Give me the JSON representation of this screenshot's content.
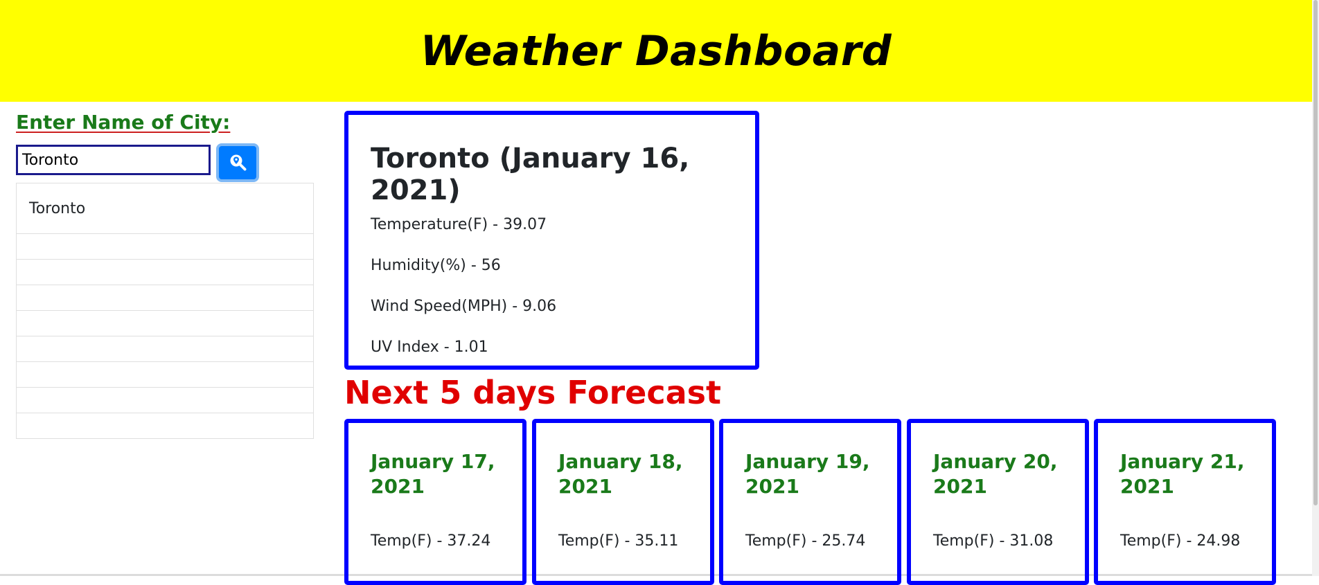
{
  "header": {
    "title": "Weather Dashboard"
  },
  "search": {
    "label": "Enter Name of City:",
    "value": "Toronto",
    "button_icon": "search-location-icon",
    "accent": "#007bff"
  },
  "history": {
    "items": [
      "Toronto",
      "",
      "",
      "",
      "",
      "",
      "",
      "",
      ""
    ]
  },
  "current": {
    "title": "Toronto (January 16, 2021)",
    "temperature": "Temperature(F) - 39.07",
    "humidity": "Humidity(%) - 56",
    "wind": "Wind Speed(MPH) - 9.06",
    "uv": "UV Index - 1.01"
  },
  "forecast": {
    "title": "Next 5 days Forecast",
    "days": [
      {
        "date": "January 17, 2021",
        "temp": "Temp(F) - 37.24"
      },
      {
        "date": "January 18, 2021",
        "temp": "Temp(F) - 35.11"
      },
      {
        "date": "January 19, 2021",
        "temp": "Temp(F) - 25.74"
      },
      {
        "date": "January 20, 2021",
        "temp": "Temp(F) - 31.08"
      },
      {
        "date": "January 21, 2021",
        "temp": "Temp(F) - 24.98"
      }
    ]
  },
  "colors": {
    "header_bg": "#ffff00",
    "card_border": "#0000ff",
    "label_green": "#1a7a1a",
    "forecast_red": "#e00000"
  }
}
